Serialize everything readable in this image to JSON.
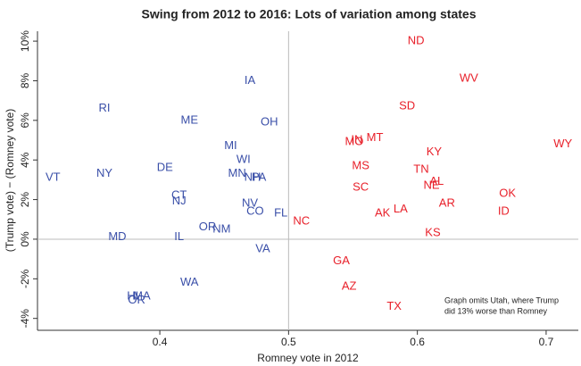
{
  "chart_data": {
    "type": "scatter",
    "title": "Swing from 2012 to 2016:  Lots of variation among states",
    "x_label": "Romney vote in 2012",
    "y_label": "(Trump vote) − (Romney vote)",
    "annotation": [
      "Graph omits Utah, where Trump",
      "did 13% worse than Romney"
    ],
    "xlim": [
      0.305,
      0.725
    ],
    "ylim": [
      -4.6,
      10.5
    ],
    "xticks": [
      0.4,
      0.5,
      0.6,
      0.7
    ],
    "yticks": [
      {
        "value": -4,
        "label": "-4%"
      },
      {
        "value": -2,
        "label": "-2%"
      },
      {
        "value": 0,
        "label": "0%"
      },
      {
        "value": 2,
        "label": "2%"
      },
      {
        "value": 4,
        "label": "4%"
      },
      {
        "value": 6,
        "label": "6%"
      },
      {
        "value": 8,
        "label": "8%"
      },
      {
        "value": 10,
        "label": "10%"
      }
    ],
    "reference_lines": {
      "x": 0.5,
      "y": 0
    },
    "series": [
      {
        "color": "#3a4fa8",
        "labels": [
          "VT",
          "RI",
          "NY",
          "DE",
          "ME",
          "IA",
          "OH",
          "MI",
          "WI",
          "MN",
          "NH",
          "PA",
          "CT",
          "NJ",
          "NV",
          "CO",
          "FL",
          "OR",
          "NM",
          "MD",
          "IL",
          "VA",
          "WA",
          "HI",
          "MA",
          "OR"
        ],
        "x": [
          0.317,
          0.357,
          0.357,
          0.404,
          0.423,
          0.47,
          0.485,
          0.455,
          0.465,
          0.46,
          0.472,
          0.477,
          0.415,
          0.415,
          0.47,
          0.474,
          0.494,
          0.437,
          0.448,
          0.367,
          0.415,
          0.48,
          0.423,
          0.379,
          0.386,
          0.382
        ],
        "y": [
          3.1,
          6.6,
          3.3,
          3.6,
          6.0,
          8.0,
          5.9,
          4.7,
          4.0,
          3.3,
          3.1,
          3.1,
          2.2,
          1.9,
          1.8,
          1.4,
          1.3,
          0.6,
          0.5,
          0.1,
          0.1,
          -0.5,
          -2.2,
          -2.9,
          -2.9,
          -3.1
        ]
      },
      {
        "color": "#e8202a",
        "labels": [
          "ND",
          "WV",
          "SD",
          "MT",
          "IN",
          "MO",
          "WY",
          "KY",
          "MS",
          "TN",
          "AL",
          "NE",
          "SC",
          "OK",
          "AR",
          "LA",
          "AK",
          "ID",
          "NC",
          "KS",
          "GA",
          "AZ",
          "TX"
        ],
        "x": [
          0.599,
          0.64,
          0.592,
          0.567,
          0.553,
          0.551,
          0.713,
          0.613,
          0.556,
          0.603,
          0.615,
          0.611,
          0.556,
          0.67,
          0.623,
          0.587,
          0.573,
          0.667,
          0.51,
          0.612,
          0.541,
          0.547,
          0.582
        ],
        "y": [
          10.0,
          8.1,
          6.7,
          5.1,
          5.0,
          4.9,
          4.8,
          4.4,
          3.7,
          3.5,
          2.9,
          2.7,
          2.6,
          2.3,
          1.8,
          1.5,
          1.3,
          1.4,
          0.9,
          0.3,
          -1.1,
          -2.4,
          -3.4
        ]
      }
    ]
  }
}
